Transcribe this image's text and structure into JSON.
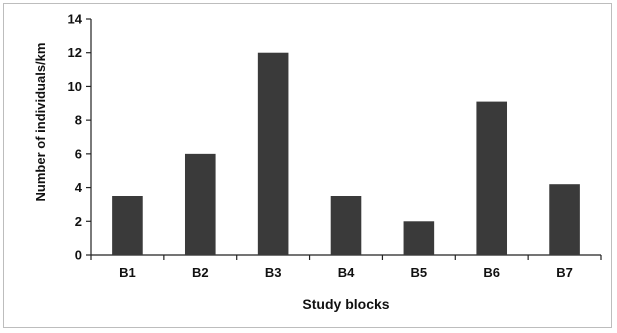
{
  "chart_data": {
    "type": "bar",
    "categories": [
      "B1",
      "B2",
      "B3",
      "B4",
      "B5",
      "B6",
      "B7"
    ],
    "values": [
      3.5,
      6.0,
      12.0,
      3.5,
      2.0,
      9.1,
      4.2
    ],
    "xlabel": "Study blocks",
    "ylabel": "Number of individuals/km",
    "ylim": [
      0,
      14
    ],
    "yticks": [
      0,
      2,
      4,
      6,
      8,
      10,
      12,
      14
    ],
    "grid": false,
    "bar_color": "#3a3a3a"
  }
}
